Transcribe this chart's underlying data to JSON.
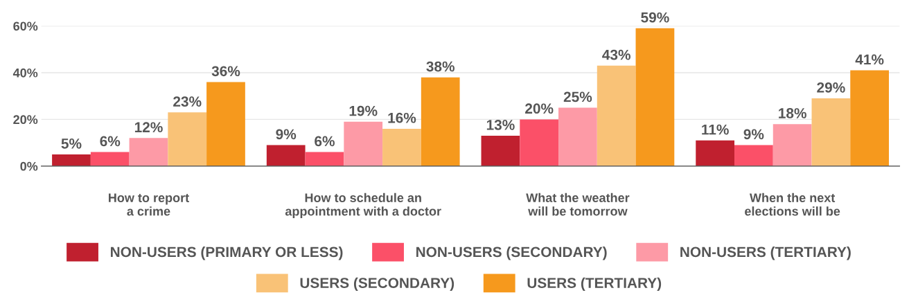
{
  "chart_data": {
    "type": "bar",
    "categories": [
      "How to report\na crime",
      "How to schedule an\nappointment with a doctor",
      "What the weather\nwill be tomorrow",
      "When the next\nelections will be"
    ],
    "series": [
      {
        "name": "NON-USERS (PRIMARY OR LESS)",
        "color": "#c0202f",
        "values": [
          5,
          9,
          13,
          11
        ],
        "value_labels": [
          "5%",
          "9%",
          "13%",
          "11%"
        ]
      },
      {
        "name": "NON-USERS (SECONDARY)",
        "color": "#fb5068",
        "values": [
          6,
          6,
          20,
          9
        ],
        "value_labels": [
          "6%",
          "6%",
          "20%",
          "9%"
        ]
      },
      {
        "name": "NON-USERS (TERTIARY)",
        "color": "#fd9aa6",
        "values": [
          12,
          19,
          25,
          18
        ],
        "value_labels": [
          "12%",
          "19%",
          "25%",
          "18%"
        ]
      },
      {
        "name": "USERS (SECONDARY)",
        "color": "#f9c277",
        "values": [
          23,
          16,
          43,
          29
        ],
        "value_labels": [
          "23%",
          "16%",
          "43%",
          "29%"
        ]
      },
      {
        "name": "USERS (TERTIARY)",
        "color": "#f6991d",
        "values": [
          36,
          38,
          59,
          41
        ],
        "value_labels": [
          "36%",
          "38%",
          "59%",
          "41%"
        ]
      }
    ],
    "ylim": [
      0,
      60
    ],
    "yticks": [
      {
        "value": 0,
        "label": "0%"
      },
      {
        "value": 20,
        "label": "20%"
      },
      {
        "value": 40,
        "label": "40%"
      },
      {
        "value": 60,
        "label": "60%"
      }
    ],
    "grid": "y",
    "legend": "bottom"
  }
}
